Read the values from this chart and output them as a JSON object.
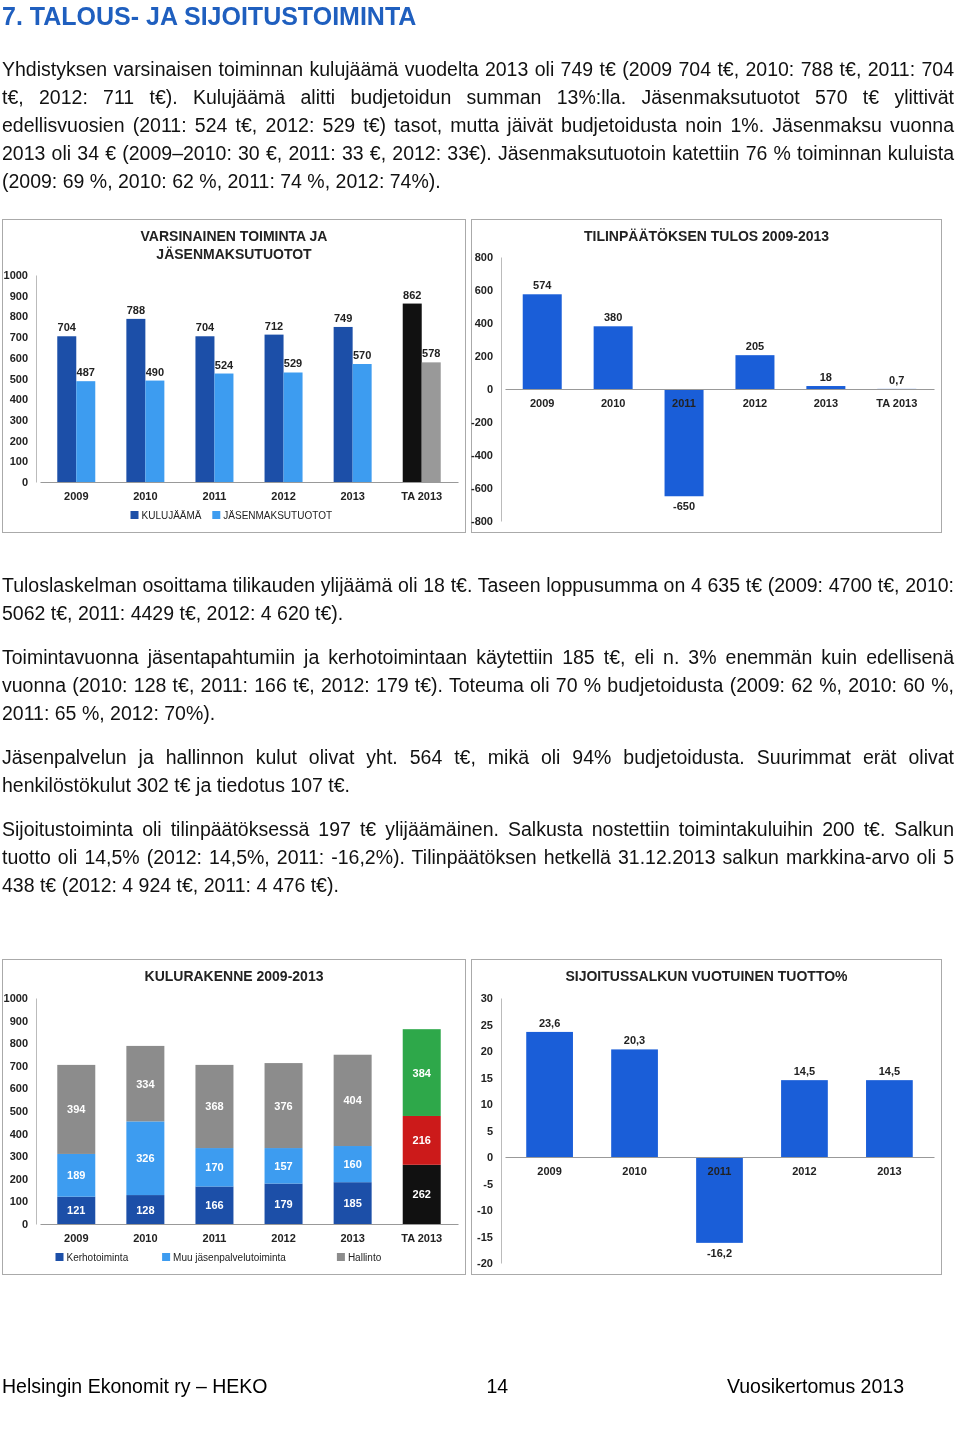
{
  "chart_data": [
    {
      "type": "bar",
      "title": "VARSINAINEN TOIMINTA JA JÄSENMAKSUTUOTOT",
      "categories": [
        "2009",
        "2010",
        "2011",
        "2012",
        "2013",
        "TA 2013"
      ],
      "series": [
        {
          "name": "KULUJÄÄMÄ",
          "color": "#1c4fa8",
          "colors": [
            "#1c4fa8",
            "#1c4fa8",
            "#1c4fa8",
            "#1c4fa8",
            "#1c4fa8",
            "#111111"
          ],
          "values": [
            704,
            788,
            704,
            712,
            749,
            862
          ]
        },
        {
          "name": "JÄSENMAKSUTUOTOT",
          "color": "#3d9cf0",
          "colors": [
            "#3d9cf0",
            "#3d9cf0",
            "#3d9cf0",
            "#3d9cf0",
            "#3d9cf0",
            "#999999"
          ],
          "values": [
            487,
            490,
            524,
            529,
            570,
            578
          ]
        }
      ],
      "ylim": [
        0,
        1000
      ],
      "yticks": [
        0,
        100,
        200,
        300,
        400,
        500,
        600,
        700,
        800,
        900,
        1000
      ],
      "data_labels": true,
      "legend": "bottom",
      "grid": false,
      "annotations": [
        "7. TALOUS- JA SIJOITUSTOIMINTA",
        "Yhdistyksen varsinaisen toiminnan kulujäämä vuodelta 2013 oli 749 t€ (2009 704 t€, 2010: 788 t€, 2011: 704 t€, 2012: 711 t€). Kulujäämä alitti budjetoidun summan 13%:lla. Jäsenmaksutuotot 570 t€ ylittivät edellisvuosien (2011: 524 t€, 2012: 529 t€) tasot, mutta jäivät budjetoidusta noin 1%. Jäsenmaksu vuonna 2013 oli 34 € (2009–2010: 30 €, 2011: 33 €, 2012: 33€). Jäsenmaksutuotoin katettiin 76 % toiminnan kuluista (2009: 69 %, 2010: 62 %, 2011: 74 %, 2012: 74%)."
      ]
    },
    {
      "type": "bar",
      "title": "TILINPÄÄTÖKSEN TULOS 2009-2013",
      "categories": [
        "2009",
        "2010",
        "2011",
        "2012",
        "2013",
        "TA 2013"
      ],
      "series": [
        {
          "color": "#1a5ed8",
          "values": [
            574,
            380,
            -650,
            205,
            18,
            0.7
          ],
          "value_labels": [
            "574",
            "380",
            "-650",
            "205",
            "18",
            "0,7"
          ]
        }
      ],
      "ylim": [
        -800,
        800
      ],
      "yticks": [
        -800,
        -600,
        -400,
        -200,
        0,
        200,
        400,
        600,
        800
      ],
      "grid": false
    },
    {
      "type": "bar",
      "title": "KULURAKENNE 2009-2013",
      "categories": [
        "2009",
        "2010",
        "2011",
        "2012",
        "2013",
        "TA 2013"
      ],
      "stacked": true,
      "series": [
        {
          "name": "Kerhotoiminta",
          "color": "#1c4fa8",
          "colors": [
            "#1c4fa8",
            "#1c4fa8",
            "#1c4fa8",
            "#1c4fa8",
            "#1c4fa8",
            "#111111"
          ],
          "values": [
            121,
            128,
            166,
            179,
            185,
            262
          ]
        },
        {
          "name": "Muu jäsenpalvelutoiminta",
          "color": "#3d9cf0",
          "colors": [
            "#3d9cf0",
            "#3d9cf0",
            "#3d9cf0",
            "#3d9cf0",
            "#3d9cf0",
            "#cc1a1a"
          ],
          "values": [
            189,
            326,
            170,
            157,
            160,
            216
          ]
        },
        {
          "name": "Hallinto",
          "color": "#8c8c8c",
          "colors": [
            "#8c8c8c",
            "#8c8c8c",
            "#8c8c8c",
            "#8c8c8c",
            "#8c8c8c",
            "#2ea84a"
          ],
          "values": [
            394,
            334,
            368,
            376,
            404,
            384
          ]
        }
      ],
      "ylim": [
        0,
        1000
      ],
      "yticks": [
        0,
        100,
        200,
        300,
        400,
        500,
        600,
        700,
        800,
        900,
        1000
      ],
      "data_labels": true,
      "legend": "bottom",
      "grid": false,
      "annotations": [
        "Tuloslaskelman osoittama tilikauden ylijäämä oli 18 t€. Taseen loppusumma on 4 635 t€ (2009: 4700 t€, 2010: 5062 t€, 2011: 4429 t€, 2012: 4 620 t€).",
        "Toimintavuonna jäsentapahtumiin ja kerhotoimintaan käytettiin 185 t€, eli n. 3% enemmän kuin edellisenä vuonna (2010: 128 t€, 2011: 166 t€, 2012: 179 t€). Toteuma oli 70 % budjetoidusta (2009: 62 %, 2010: 60 %, 2011: 65 %, 2012: 70%).",
        "Jäsenpalvelun ja hallinnon kulut olivat yht. 564 t€, mikä oli 94% budjetoidusta. Suurimmat erät olivat henkilöstökulut 302 t€ ja tiedotus 107 t€.",
        "Sijoitustoiminta oli tilinpäätöksessä 197 t€ ylijäämäinen. Salkusta nostettiin toimintakuluihin 200 t€. Salkun tuotto oli 14,5% (2012: 14,5%, 2011: -16,2%). Tilinpäätöksen hetkellä 31.12.2013 salkun markkina-arvo oli 5 438 t€ (2012: 4 924 t€, 2011: 4 476 t€)."
      ]
    },
    {
      "type": "bar",
      "title": "SIJOITUSSALKUN VUOTUINEN TUOTTO%",
      "categories": [
        "2009",
        "2010",
        "2011",
        "2012",
        "2013"
      ],
      "series": [
        {
          "color": "#1a5ed8",
          "values": [
            23.6,
            20.3,
            -16.2,
            14.5,
            14.5
          ],
          "value_labels": [
            "23,6",
            "20,3",
            "-16,2",
            "14,5",
            "14,5"
          ]
        }
      ],
      "ylim": [
        -20,
        30
      ],
      "yticks": [
        -20,
        -15,
        -10,
        -5,
        0,
        5,
        10,
        15,
        20,
        25,
        30
      ],
      "grid": false,
      "annotations": [
        "Helsingin Ekonomit ry – HEKO",
        "14",
        "Vuosikertomus 2013"
      ]
    }
  ]
}
